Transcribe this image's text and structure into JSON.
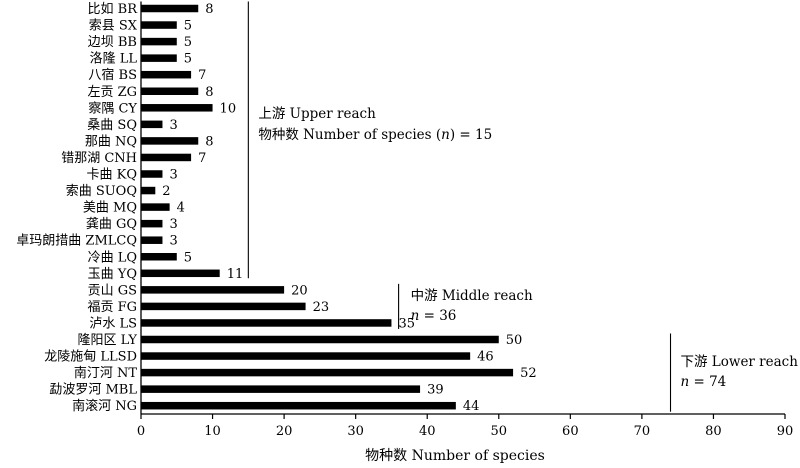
{
  "chart_data": {
    "type": "bar",
    "orientation": "horizontal",
    "xlabel": "物种数 Number of species",
    "ylabel": "",
    "xlim": [
      0,
      90
    ],
    "xticks": [
      0,
      10,
      20,
      30,
      40,
      50,
      60,
      70,
      80,
      90
    ],
    "grid": false,
    "categories": [
      "比如 BR",
      "索县 SX",
      "边坝 BB",
      "洛隆 LL",
      "八宿 BS",
      "左贡 ZG",
      "察隅 CY",
      "桑曲 SQ",
      "那曲 NQ",
      "错那湖 CNH",
      "卡曲 KQ",
      "索曲 SUOQ",
      "美曲 MQ",
      "龚曲 GQ",
      "卓玛朗措曲 ZMLCQ",
      "冷曲 LQ",
      "玉曲 YQ",
      "贡山 GS",
      "福贡 FG",
      "泸水 LS",
      "隆阳区 LY",
      "龙陵施甸 LLSD",
      "南汀河 NT",
      "勐波罗河 MBL",
      "南滚河 NG"
    ],
    "values": [
      8,
      5,
      5,
      5,
      7,
      8,
      10,
      3,
      8,
      7,
      3,
      2,
      4,
      3,
      3,
      5,
      11,
      20,
      23,
      35,
      50,
      46,
      52,
      39,
      44
    ],
    "annotations": [
      {
        "group": "upper",
        "line1": "上游 Upper reach",
        "line2_prefix": "物种数 Number of species (",
        "line2_var": "n",
        "line2_suffix": ") = 15",
        "x_value": 15,
        "from_category": 0,
        "to_category": 16
      },
      {
        "group": "middle",
        "line1": "中游 Middle reach",
        "line2_var": "n",
        "line2_suffix": " = 36",
        "x_value": 36,
        "from_category": 17,
        "to_category": 19
      },
      {
        "group": "lower",
        "line1": "下游 Lower reach",
        "line2_var": "n",
        "line2_suffix": " = 74",
        "x_value": 74,
        "from_category": 20,
        "to_category": 24
      }
    ]
  }
}
